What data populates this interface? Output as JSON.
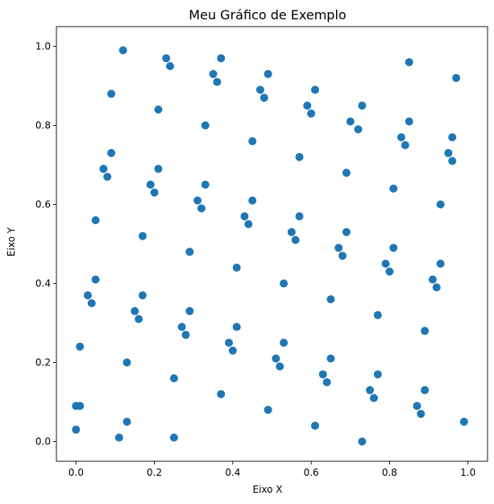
{
  "chart_data": {
    "type": "scatter",
    "title": "Meu Gráfico de Exemplo",
    "xlabel": "Eixo X",
    "ylabel": "Eixo Y",
    "xlim": [
      -0.05,
      1.05
    ],
    "ylim": [
      -0.05,
      1.05
    ],
    "xticks": [
      0.0,
      0.2,
      0.4,
      0.6,
      0.8,
      1.0
    ],
    "yticks": [
      0.0,
      0.2,
      0.4,
      0.6,
      0.8,
      1.0
    ],
    "xtick_labels": [
      "0.0",
      "0.2",
      "0.4",
      "0.6",
      "0.8",
      "1.0"
    ],
    "ytick_labels": [
      "0.0",
      "0.2",
      "0.4",
      "0.6",
      "0.8",
      "1.0"
    ],
    "grid": false,
    "marker_color": "#1f77b4",
    "points": [
      [
        0.12,
        0.99
      ],
      [
        0.23,
        0.97
      ],
      [
        0.37,
        0.97
      ],
      [
        0.24,
        0.95
      ],
      [
        0.85,
        0.96
      ],
      [
        0.49,
        0.93
      ],
      [
        0.35,
        0.93
      ],
      [
        0.97,
        0.92
      ],
      [
        0.36,
        0.91
      ],
      [
        0.09,
        0.88
      ],
      [
        0.47,
        0.89
      ],
      [
        0.61,
        0.89
      ],
      [
        0.48,
        0.87
      ],
      [
        0.21,
        0.84
      ],
      [
        0.59,
        0.85
      ],
      [
        0.73,
        0.85
      ],
      [
        0.6,
        0.83
      ],
      [
        0.85,
        0.81
      ],
      [
        0.7,
        0.81
      ],
      [
        0.33,
        0.8
      ],
      [
        0.72,
        0.79
      ],
      [
        0.83,
        0.77
      ],
      [
        0.96,
        0.77
      ],
      [
        0.45,
        0.76
      ],
      [
        0.84,
        0.75
      ],
      [
        0.09,
        0.73
      ],
      [
        0.57,
        0.72
      ],
      [
        0.95,
        0.73
      ],
      [
        0.96,
        0.71
      ],
      [
        0.07,
        0.69
      ],
      [
        0.21,
        0.69
      ],
      [
        0.08,
        0.67
      ],
      [
        0.69,
        0.68
      ],
      [
        0.33,
        0.65
      ],
      [
        0.19,
        0.65
      ],
      [
        0.81,
        0.64
      ],
      [
        0.2,
        0.63
      ],
      [
        0.31,
        0.61
      ],
      [
        0.45,
        0.61
      ],
      [
        0.93,
        0.6
      ],
      [
        0.32,
        0.59
      ],
      [
        0.43,
        0.57
      ],
      [
        0.57,
        0.57
      ],
      [
        0.05,
        0.56
      ],
      [
        0.44,
        0.55
      ],
      [
        0.55,
        0.53
      ],
      [
        0.69,
        0.53
      ],
      [
        0.17,
        0.52
      ],
      [
        0.56,
        0.51
      ],
      [
        0.81,
        0.49
      ],
      [
        0.67,
        0.49
      ],
      [
        0.29,
        0.48
      ],
      [
        0.68,
        0.47
      ],
      [
        0.93,
        0.45
      ],
      [
        0.79,
        0.45
      ],
      [
        0.41,
        0.44
      ],
      [
        0.8,
        0.43
      ],
      [
        0.05,
        0.41
      ],
      [
        0.91,
        0.41
      ],
      [
        0.53,
        0.4
      ],
      [
        0.92,
        0.39
      ],
      [
        0.17,
        0.37
      ],
      [
        0.03,
        0.37
      ],
      [
        0.65,
        0.36
      ],
      [
        0.04,
        0.35
      ],
      [
        0.29,
        0.33
      ],
      [
        0.15,
        0.33
      ],
      [
        0.77,
        0.32
      ],
      [
        0.16,
        0.31
      ],
      [
        0.27,
        0.29
      ],
      [
        0.41,
        0.29
      ],
      [
        0.89,
        0.28
      ],
      [
        0.28,
        0.27
      ],
      [
        0.39,
        0.25
      ],
      [
        0.53,
        0.25
      ],
      [
        0.01,
        0.24
      ],
      [
        0.4,
        0.23
      ],
      [
        0.65,
        0.21
      ],
      [
        0.51,
        0.21
      ],
      [
        0.13,
        0.2
      ],
      [
        0.52,
        0.19
      ],
      [
        0.77,
        0.17
      ],
      [
        0.63,
        0.17
      ],
      [
        0.25,
        0.16
      ],
      [
        0.64,
        0.15
      ],
      [
        0.75,
        0.13
      ],
      [
        0.89,
        0.13
      ],
      [
        0.37,
        0.12
      ],
      [
        0.76,
        0.11
      ],
      [
        0.0,
        0.09
      ],
      [
        0.01,
        0.09
      ],
      [
        0.87,
        0.09
      ],
      [
        0.49,
        0.08
      ],
      [
        0.88,
        0.07
      ],
      [
        0.13,
        0.05
      ],
      [
        0.99,
        0.05
      ],
      [
        0.61,
        0.04
      ],
      [
        0.0,
        0.03
      ],
      [
        0.11,
        0.01
      ],
      [
        0.25,
        0.01
      ],
      [
        0.73,
        0.0
      ]
    ]
  }
}
